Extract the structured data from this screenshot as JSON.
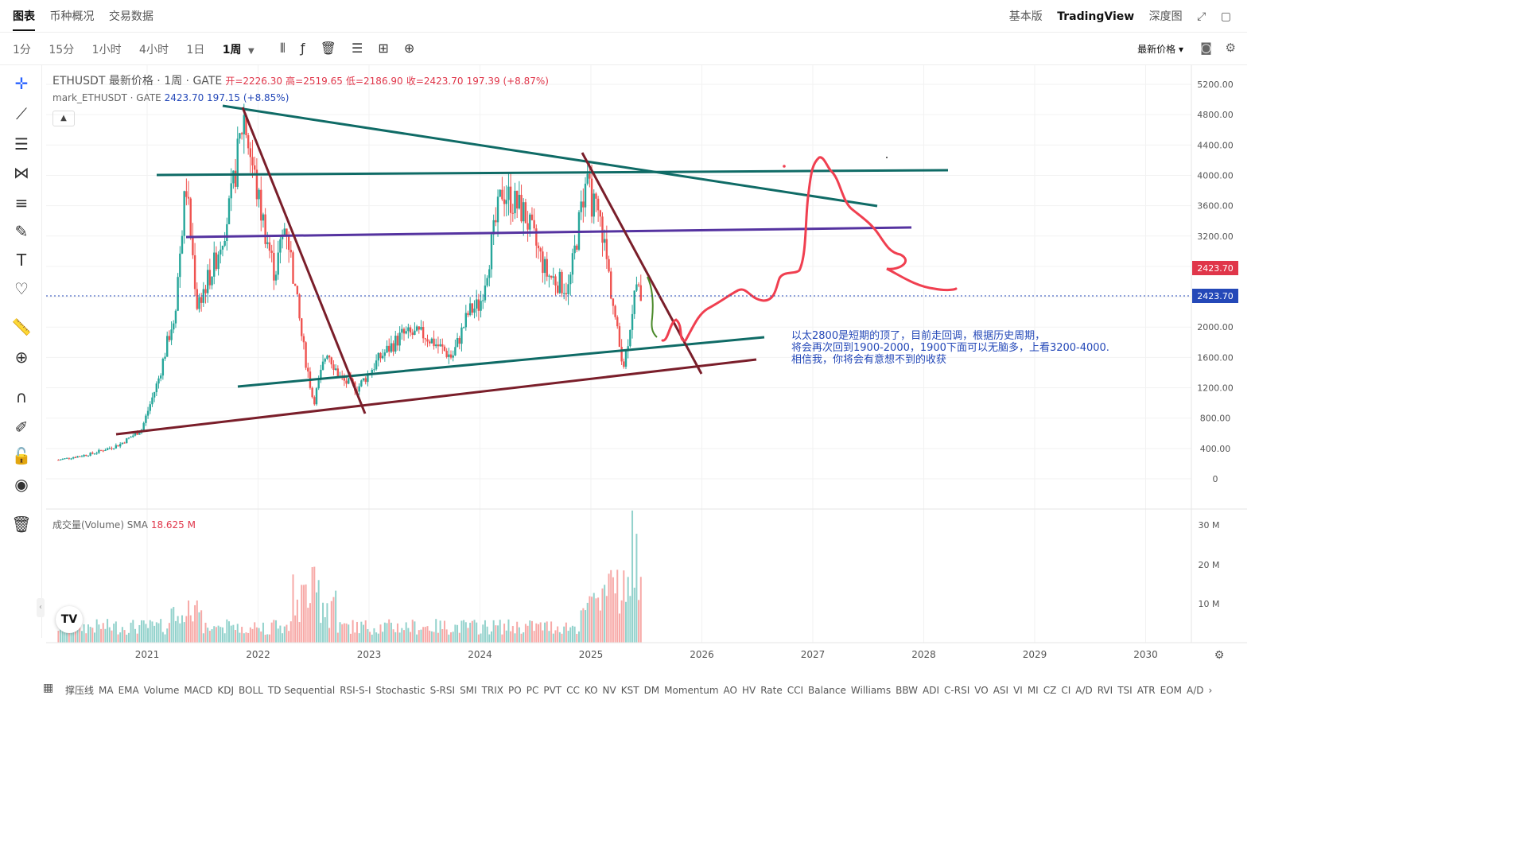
{
  "top_tabs": {
    "chart": "图表",
    "overview": "币种概况",
    "trade_data": "交易数据"
  },
  "top_right": {
    "basic": "基本版",
    "tradingview": "TradingView",
    "depth": "深度图"
  },
  "intervals": [
    "1分",
    "15分",
    "1小时",
    "4小时",
    "1日",
    "1周"
  ],
  "active_interval_index": 5,
  "price_mode": "最新价格 ▾",
  "legend": {
    "symbol": "ETHUSDT 最新价格 · 1周 · GATE",
    "open": "开=2226.30",
    "high": "高=2519.65",
    "low": "低=2186.90",
    "close": "收=2423.70",
    "change": "197.39 (+8.87%)"
  },
  "legend2": {
    "symbol": "mark_ETHUSDT · GATE",
    "value": "2423.70",
    "change": "197.15 (+8.85%)"
  },
  "volume_legend": {
    "label": "成交量(Volume) SMA",
    "value": "18.625 M"
  },
  "annotation": {
    "line1": "以太2800是短期的顶了，目前走回调，根据历史周期，",
    "line2": "将会再次回到1900-2000，1900下面可以无脑多，上看3200-4000.",
    "line3": "相信我，你将会有意想不到的收获"
  },
  "indicators": [
    "撑压线",
    "MA",
    "EMA",
    "Volume",
    "MACD",
    "KDJ",
    "BOLL",
    "TD Sequential",
    "RSI-S-I",
    "Stochastic",
    "S-RSI",
    "SMI",
    "TRIX",
    "PO",
    "PC",
    "PVT",
    "CC",
    "KO",
    "NV",
    "KST",
    "DM",
    "Momentum",
    "AO",
    "HV",
    "Rate",
    "CCI",
    "Balance",
    "Williams",
    "BBW",
    "ADI",
    "C-RSI",
    "VO",
    "ASI",
    "VI",
    "MI",
    "CZ",
    "CI",
    "A/D",
    "RVI",
    "TSI",
    "ATR",
    "EOM",
    "A/D"
  ],
  "colors": {
    "up": "#26a69a",
    "down": "#ef5350",
    "accent_red": "#e0364a",
    "accent_blue": "#2448b8",
    "teal_line": "#0f6b66",
    "maroon_line": "#7a1e2a",
    "purple_line": "#5533a0",
    "drawing_red": "#f03f50"
  },
  "chart_data": {
    "type": "candlestick",
    "timeframe": "1W",
    "price_axis_labels": [
      "5200.00",
      "4800.00",
      "4400.00",
      "4000.00",
      "3600.00",
      "3200.00",
      "2000.00",
      "1600.00",
      "1200.00",
      "800.00",
      "400.00",
      "0"
    ],
    "price_ylim": [
      0,
      5200
    ],
    "current_price": "2423.70",
    "last_price_tag": "2423.70",
    "volume_axis_labels": [
      "30 M",
      "20 M",
      "10 M"
    ],
    "x_axis_labels": [
      "2021",
      "2022",
      "2023",
      "2024",
      "2025",
      "2026",
      "2027",
      "2028",
      "2029",
      "2030"
    ],
    "price_path": [
      {
        "x": 2020.2,
        "y": 250
      },
      {
        "x": 2020.5,
        "y": 330
      },
      {
        "x": 2020.75,
        "y": 450
      },
      {
        "x": 2020.95,
        "y": 650
      },
      {
        "x": 2021.1,
        "y": 1300
      },
      {
        "x": 2021.25,
        "y": 2200
      },
      {
        "x": 2021.35,
        "y": 3900
      },
      {
        "x": 2021.45,
        "y": 2300
      },
      {
        "x": 2021.6,
        "y": 2800
      },
      {
        "x": 2021.75,
        "y": 3600
      },
      {
        "x": 2021.87,
        "y": 4800
      },
      {
        "x": 2022.0,
        "y": 3700
      },
      {
        "x": 2022.15,
        "y": 2700
      },
      {
        "x": 2022.25,
        "y": 3400
      },
      {
        "x": 2022.4,
        "y": 1800
      },
      {
        "x": 2022.5,
        "y": 1000
      },
      {
        "x": 2022.62,
        "y": 1700
      },
      {
        "x": 2022.75,
        "y": 1300
      },
      {
        "x": 2022.9,
        "y": 1200
      },
      {
        "x": 2023.1,
        "y": 1600
      },
      {
        "x": 2023.3,
        "y": 1900
      },
      {
        "x": 2023.5,
        "y": 1900
      },
      {
        "x": 2023.75,
        "y": 1600
      },
      {
        "x": 2023.9,
        "y": 2200
      },
      {
        "x": 2024.0,
        "y": 2300
      },
      {
        "x": 2024.2,
        "y": 3800
      },
      {
        "x": 2024.4,
        "y": 3500
      },
      {
        "x": 2024.6,
        "y": 2700
      },
      {
        "x": 2024.8,
        "y": 2500
      },
      {
        "x": 2024.95,
        "y": 3900
      },
      {
        "x": 2025.1,
        "y": 3300
      },
      {
        "x": 2025.25,
        "y": 1800
      },
      {
        "x": 2025.3,
        "y": 1500
      },
      {
        "x": 2025.4,
        "y": 2500
      },
      {
        "x": 2025.45,
        "y": 2424
      }
    ]
  }
}
